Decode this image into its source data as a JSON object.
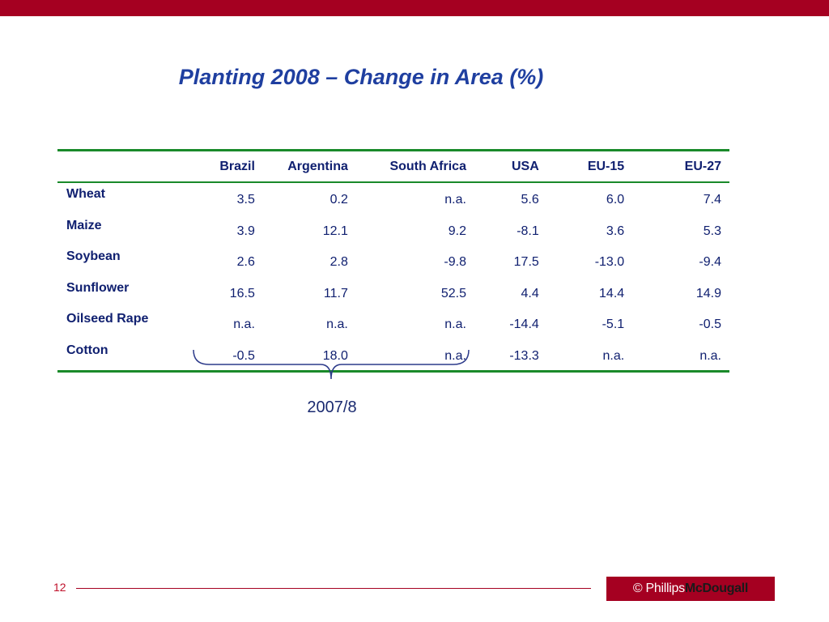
{
  "title": "Planting 2008 – Change in Area (%)",
  "table": {
    "columns": [
      "Brazil",
      "Argentina",
      "South Africa",
      "USA",
      "EU-15",
      "EU-27"
    ],
    "rows": [
      {
        "label": "Wheat",
        "values": [
          "3.5",
          "0.2",
          "n.a.",
          "5.6",
          "6.0",
          "7.4"
        ]
      },
      {
        "label": "Maize",
        "values": [
          "3.9",
          "12.1",
          "9.2",
          "-8.1",
          "3.6",
          "5.3"
        ]
      },
      {
        "label": "Soybean",
        "values": [
          "2.6",
          "2.8",
          "-9.8",
          "17.5",
          "-13.0",
          "-9.4"
        ]
      },
      {
        "label": "Sunflower",
        "values": [
          "16.5",
          "11.7",
          "52.5",
          "4.4",
          "14.4",
          "14.9"
        ]
      },
      {
        "label": "Oilseed Rape",
        "values": [
          "n.a.",
          "n.a.",
          "n.a.",
          "-14.4",
          "-5.1",
          "-0.5"
        ]
      },
      {
        "label": "Cotton",
        "values": [
          "-0.5",
          "18.0",
          "n.a.",
          "-13.3",
          "n.a.",
          "n.a."
        ]
      }
    ]
  },
  "brace_label": "2007/8",
  "footer": {
    "page_number": "12",
    "logo_copyright": "© Phillips",
    "logo_brand": "McDougall"
  },
  "colors": {
    "accent": "#a50021",
    "title": "#1f3fa0",
    "table_rule": "#1a8a2a",
    "text": "#102070"
  }
}
